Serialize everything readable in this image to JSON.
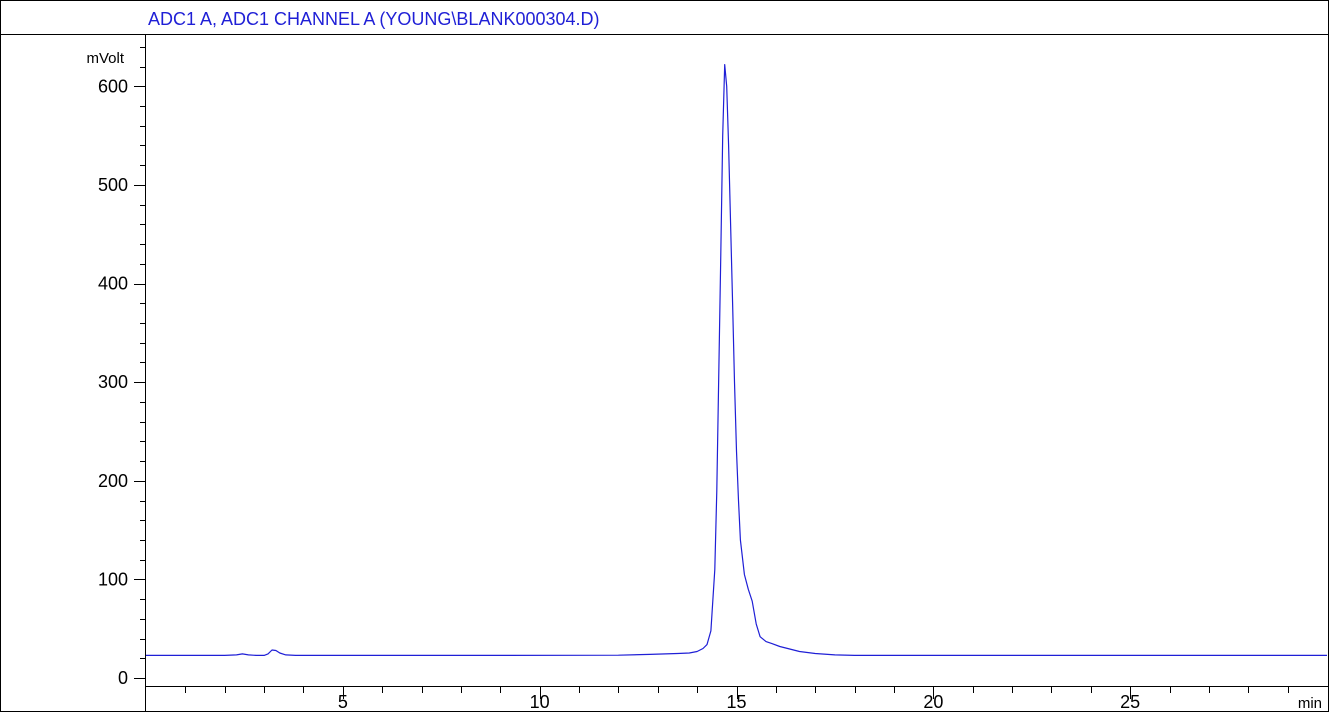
{
  "chart_data": {
    "type": "line",
    "title": "ADC1 A, ADC1 CHANNEL A (YOUNG\\BLANK000304.D)",
    "xlabel": "min",
    "ylabel": "mVolt",
    "xlim": [
      0,
      30
    ],
    "ylim": [
      -8,
      652
    ],
    "x_ticks": [
      5,
      10,
      15,
      20,
      25
    ],
    "y_ticks": [
      0,
      100,
      200,
      300,
      400,
      500,
      600
    ],
    "grid": false,
    "colors": {
      "trace": "#1f1fd6",
      "title": "#1f1fd6",
      "axes": "#000000"
    },
    "series": [
      {
        "points": [
          [
            0,
            23
          ],
          [
            2.0,
            23
          ],
          [
            2.3,
            23.5
          ],
          [
            2.45,
            24.5
          ],
          [
            2.6,
            23.5
          ],
          [
            2.8,
            23
          ],
          [
            3.0,
            23
          ],
          [
            3.1,
            24.5
          ],
          [
            3.2,
            28.5
          ],
          [
            3.3,
            28
          ],
          [
            3.4,
            25.5
          ],
          [
            3.55,
            23.5
          ],
          [
            3.8,
            23
          ],
          [
            8,
            23
          ],
          [
            12.0,
            23.2
          ],
          [
            12.8,
            24
          ],
          [
            13.2,
            24.5
          ],
          [
            13.5,
            25
          ],
          [
            13.8,
            25.5
          ],
          [
            14.0,
            27
          ],
          [
            14.15,
            30
          ],
          [
            14.25,
            34
          ],
          [
            14.35,
            48
          ],
          [
            14.45,
            110
          ],
          [
            14.5,
            190
          ],
          [
            14.55,
            310
          ],
          [
            14.6,
            430
          ],
          [
            14.65,
            550
          ],
          [
            14.7,
            622
          ],
          [
            14.75,
            600
          ],
          [
            14.8,
            540
          ],
          [
            14.85,
            460
          ],
          [
            14.9,
            380
          ],
          [
            14.95,
            300
          ],
          [
            15.0,
            230
          ],
          [
            15.05,
            180
          ],
          [
            15.1,
            140
          ],
          [
            15.2,
            105
          ],
          [
            15.3,
            90
          ],
          [
            15.4,
            78
          ],
          [
            15.5,
            55
          ],
          [
            15.6,
            42
          ],
          [
            15.75,
            37
          ],
          [
            15.9,
            35
          ],
          [
            16.1,
            32
          ],
          [
            16.3,
            30
          ],
          [
            16.6,
            27
          ],
          [
            17.0,
            25
          ],
          [
            17.5,
            23.5
          ],
          [
            18.0,
            23
          ],
          [
            22,
            23
          ],
          [
            26,
            23
          ],
          [
            30,
            23
          ]
        ]
      }
    ]
  }
}
